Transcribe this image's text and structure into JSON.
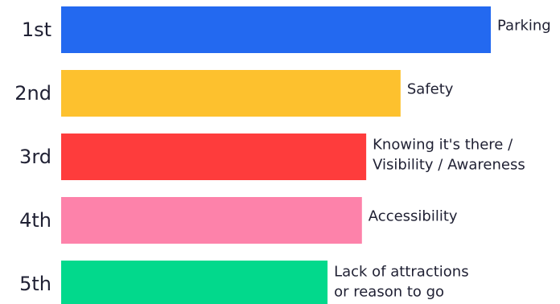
{
  "chart_data": {
    "type": "bar",
    "orientation": "horizontal",
    "title": "",
    "xlabel": "",
    "ylabel": "",
    "grid": false,
    "legend": "none",
    "categories": [
      "1st",
      "2nd",
      "3rd",
      "4th",
      "5th"
    ],
    "bars": [
      {
        "rank": "1st",
        "label_lines": [
          "Parking"
        ],
        "value": 100,
        "color": "#2369f0"
      },
      {
        "rank": "2nd",
        "label_lines": [
          "Safety"
        ],
        "value": 79,
        "color": "#fdc12e"
      },
      {
        "rank": "3rd",
        "label_lines": [
          "Knowing it's there /",
          "Visibility / Awareness"
        ],
        "value": 71,
        "color": "#fe3c3c"
      },
      {
        "rank": "4th",
        "label_lines": [
          "Accessibility"
        ],
        "value": 70,
        "color": "#fd82aa"
      },
      {
        "rank": "5th",
        "label_lines": [
          "Lack of attractions",
          "or reason to go"
        ],
        "value": 62,
        "color": "#02d98c"
      }
    ],
    "xlim": [
      0,
      100
    ]
  }
}
